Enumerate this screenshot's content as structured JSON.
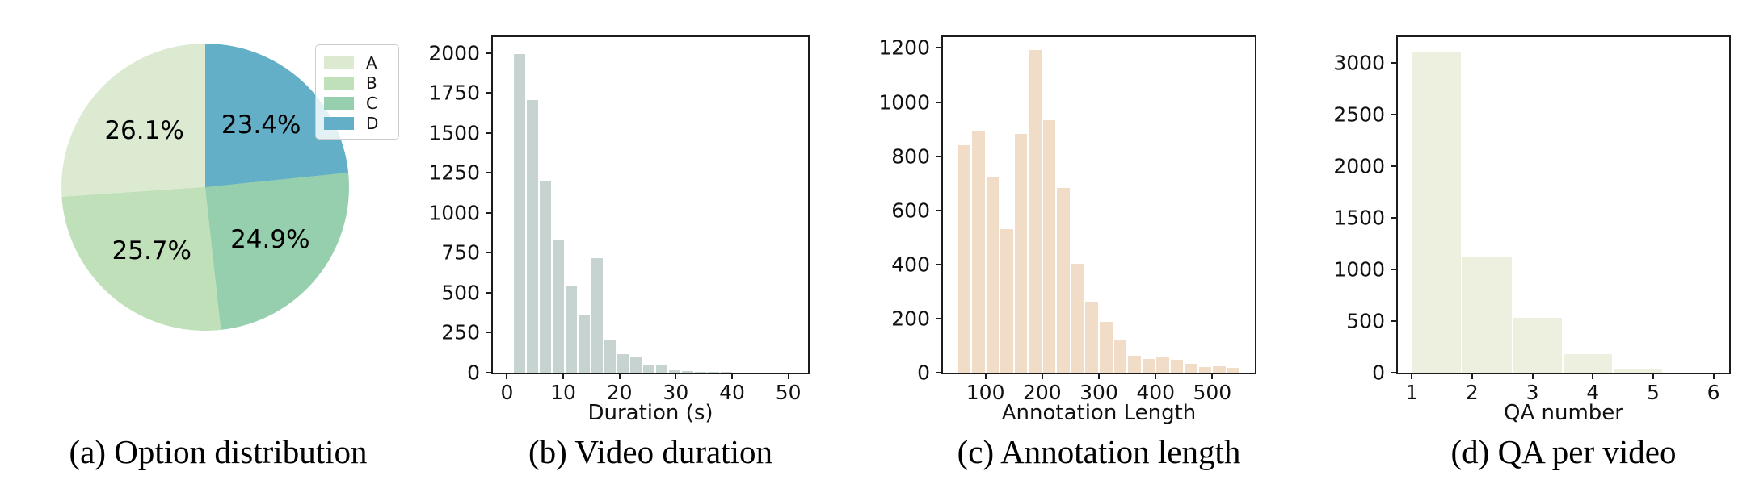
{
  "figure": {
    "background": "#ffffff",
    "spine_color": "#1c1c1c"
  },
  "chart_data": [
    {
      "type": "pie",
      "caption": "(a) Option distribution",
      "labels": [
        "A",
        "B",
        "C",
        "D"
      ],
      "values": [
        26.1,
        25.7,
        24.9,
        23.4
      ],
      "value_labels": [
        "26.1%",
        "25.7%",
        "24.9%",
        "23.4%"
      ],
      "colors": [
        "#dcead2",
        "#bfe0b8",
        "#96cfae",
        "#64afc8"
      ],
      "start_angle": 90,
      "direction": "counterclockwise",
      "legend_position": "upper right",
      "label_radius_fraction": 0.58
    },
    {
      "type": "bar",
      "subtype": "histogram",
      "caption": "(b) Video duration",
      "xlabel": "Duration (s)",
      "color": "#c6d3d1",
      "bin_start": 1.1,
      "bin_width": 2.3,
      "values": [
        2000,
        1710,
        1205,
        840,
        550,
        370,
        720,
        210,
        120,
        100,
        50,
        58,
        20,
        15,
        12,
        12,
        12
      ],
      "xticks": [
        0,
        10,
        20,
        30,
        40,
        50
      ],
      "yticks": [
        0,
        250,
        500,
        750,
        1000,
        1250,
        1500,
        1750,
        2000
      ],
      "xlim": [
        -2.5,
        53.5
      ],
      "ylim": [
        0,
        2100
      ],
      "grid": false
    },
    {
      "type": "bar",
      "subtype": "histogram",
      "caption": "(c) Annotation length",
      "xlabel": "Annotation Length",
      "color": "#f1dcc8",
      "bin_start": 50,
      "bin_width": 25,
      "values": [
        845,
        895,
        725,
        535,
        885,
        1195,
        935,
        685,
        405,
        265,
        190,
        125,
        65,
        55,
        62,
        52,
        35,
        25,
        27,
        20
      ],
      "xticks": [
        100,
        200,
        300,
        400,
        500
      ],
      "yticks": [
        0,
        200,
        400,
        600,
        800,
        1000,
        1200
      ],
      "xlim": [
        25,
        575
      ],
      "ylim": [
        0,
        1240
      ],
      "grid": false
    },
    {
      "type": "bar",
      "subtype": "histogram",
      "caption": "(d) QA per video",
      "xlabel": "QA number",
      "color": "#edf0df",
      "bin_start": 1,
      "bin_width": 0.8333,
      "values": [
        3120,
        1125,
        540,
        190,
        45,
        8
      ],
      "xticks": [
        1,
        2,
        3,
        4,
        5,
        6
      ],
      "yticks": [
        0,
        500,
        1000,
        1500,
        2000,
        2500,
        3000
      ],
      "xlim": [
        0.77,
        6.26
      ],
      "ylim": [
        0,
        3250
      ],
      "grid": false
    }
  ]
}
